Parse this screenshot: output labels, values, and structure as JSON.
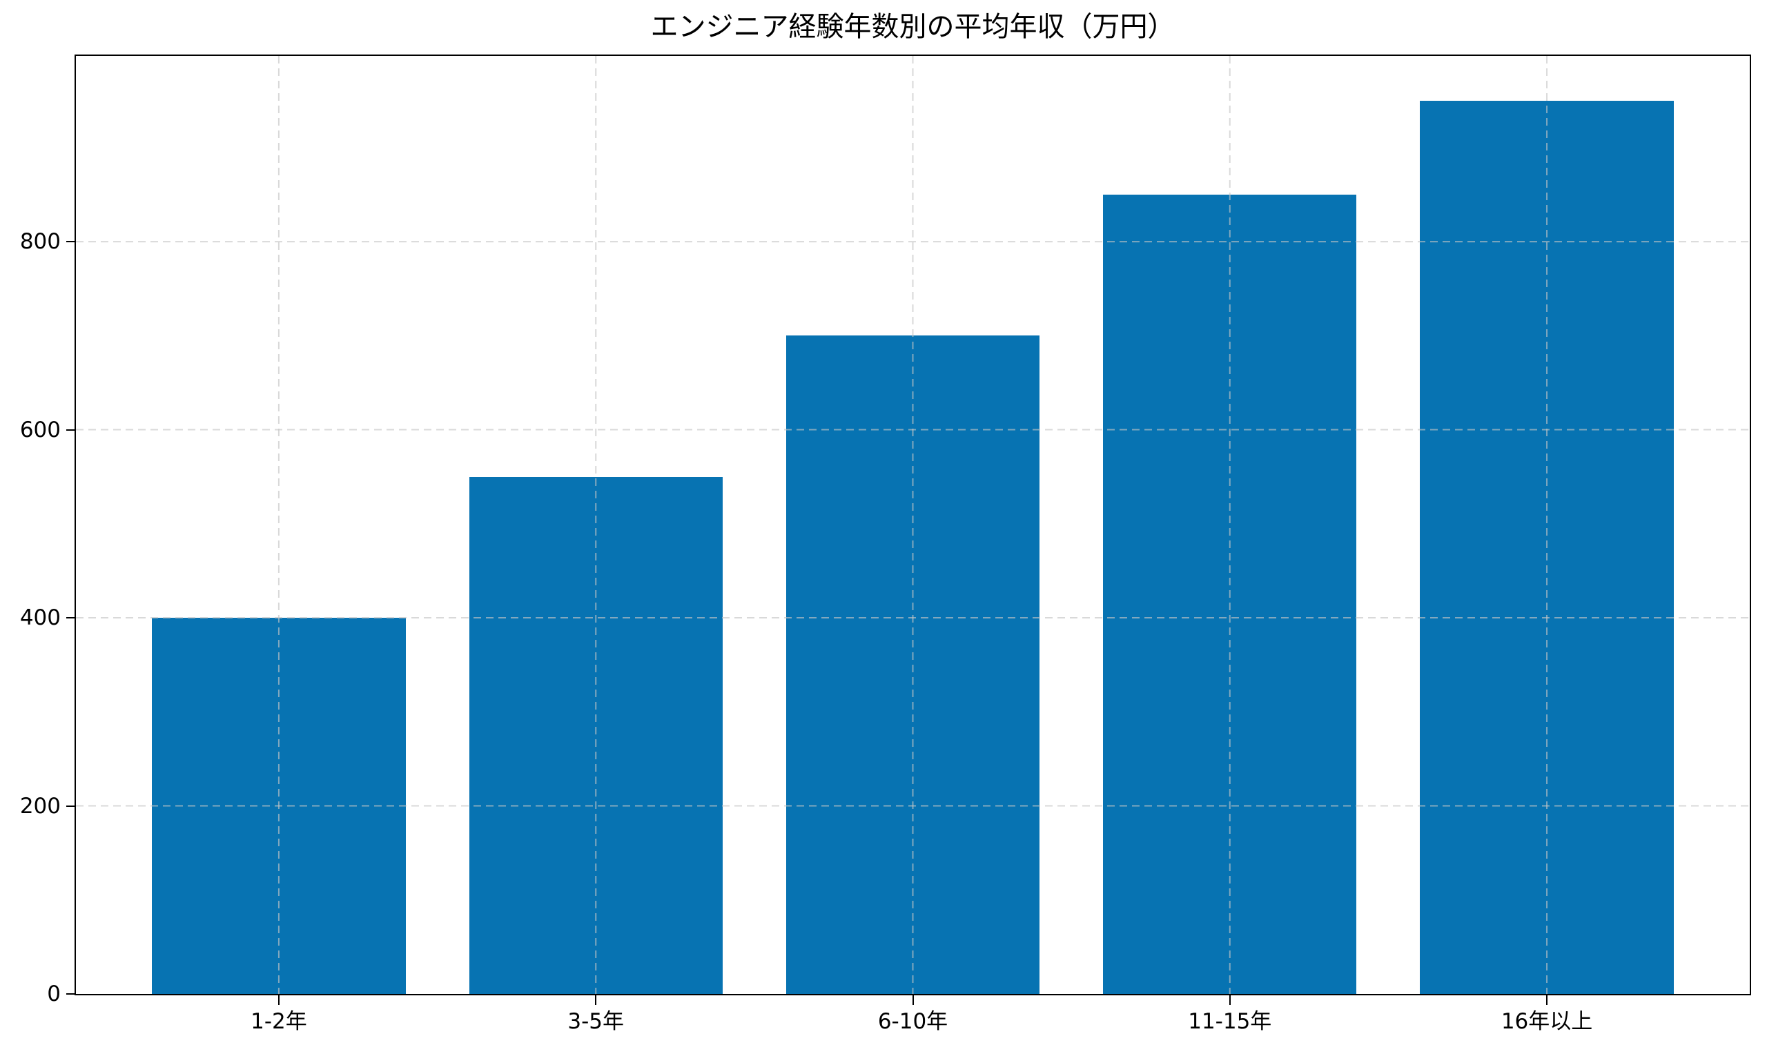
{
  "chart_data": {
    "type": "bar",
    "title": "エンジニア経験年数別の平均年収（万円）",
    "categories": [
      "1-2年",
      "3-5年",
      "6-10年",
      "11-15年",
      "16年以上"
    ],
    "values": [
      400,
      550,
      700,
      850,
      950
    ],
    "xlabel": "",
    "ylabel": "",
    "ylim": [
      0,
      997.5
    ],
    "yticks": [
      0,
      200,
      400,
      600,
      800
    ],
    "xlim": [
      -0.64,
      4.64
    ],
    "bar_width": 0.8,
    "bar_color": "#0773b2",
    "grid": true,
    "grid_style": "dashed",
    "grid_color": "#c4c4c4",
    "grid_opacity": 0.65,
    "axis_color": "#000000",
    "legend": "none"
  }
}
